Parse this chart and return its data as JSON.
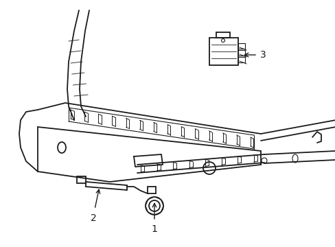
{
  "background_color": "#ffffff",
  "line_color": "#1a1a1a",
  "line_width": 1.3,
  "label1": "1",
  "label2": "2",
  "label3": "3",
  "figsize": [
    4.89,
    3.6
  ],
  "dpi": 100
}
